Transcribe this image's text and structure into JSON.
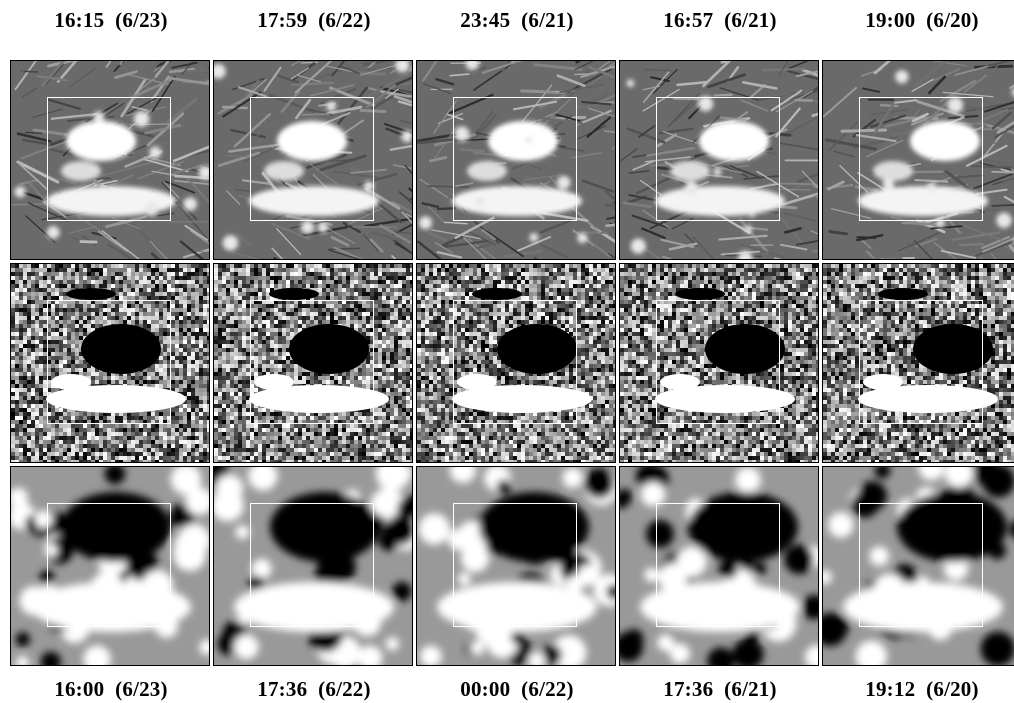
{
  "top_labels": [
    "16:15  (6/23)",
    "17:59  (6/22)",
    "23:45  (6/21)",
    "16:57  (6/21)",
    "19:00  (6/20)"
  ],
  "bottom_labels": [
    "16:00  (6/23)",
    "17:36  (6/22)",
    "00:00  (6/22)",
    "17:36  (6/21)",
    "19:12  (6/20)"
  ]
}
